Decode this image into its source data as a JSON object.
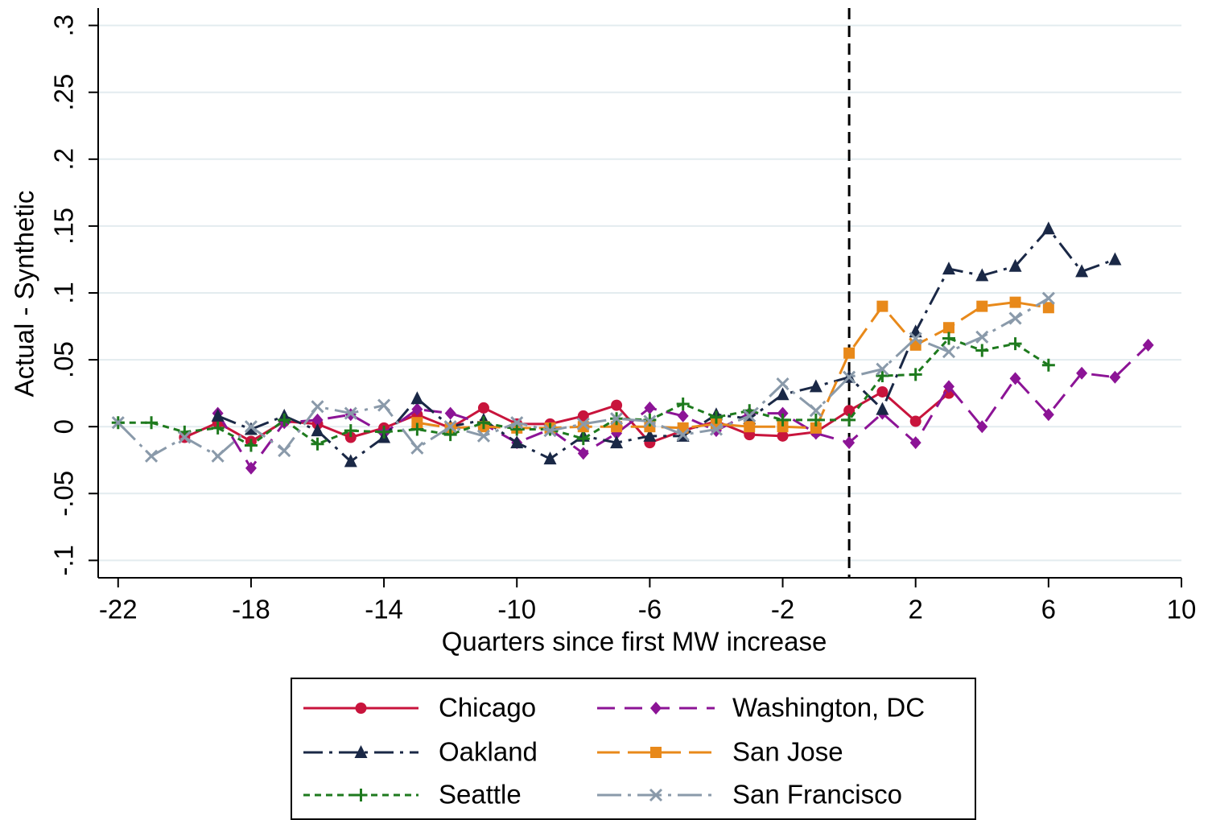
{
  "chart_data": {
    "type": "line",
    "x_label": "Quarters since first MW increase",
    "y_label": "Actual - Synthetic",
    "x": [
      -22,
      -21,
      -20,
      -19,
      -18,
      -17,
      -16,
      -15,
      -14,
      -13,
      -12,
      -11,
      -10,
      -9,
      -8,
      -7,
      -6,
      -5,
      -4,
      -3,
      -2,
      -1,
      0,
      1,
      2,
      3,
      4,
      5,
      6,
      7,
      8,
      9
    ],
    "xlim": [
      -22.6,
      10
    ],
    "xticks": [
      -22,
      -18,
      -14,
      -10,
      -6,
      -2,
      2,
      6,
      10
    ],
    "ylim": [
      -0.113,
      0.313
    ],
    "yticks": [
      {
        "value": -0.1,
        "label": "-.1"
      },
      {
        "value": -0.05,
        "label": "-.05"
      },
      0,
      {
        "value": 0.05,
        "label": ".05"
      },
      {
        "value": 0.1,
        "label": ".1"
      },
      {
        "value": 0.15,
        "label": ".15"
      },
      {
        "value": 0.2,
        "label": ".2"
      },
      {
        "value": 0.25,
        "label": ".25"
      },
      {
        "value": 0.3,
        "label": ".3"
      }
    ],
    "grid": true,
    "vline": 0,
    "series": [
      {
        "name": "Chicago",
        "color": "#c8143c",
        "dash": "solid",
        "marker": "circle",
        "values": [
          null,
          null,
          -0.008,
          0.003,
          -0.011,
          0.004,
          0.002,
          -0.008,
          -0.001,
          0.009,
          -0.001,
          0.014,
          0.002,
          0.002,
          0.008,
          0.016,
          -0.012,
          -0.003,
          0.004,
          -0.006,
          -0.007,
          -0.004,
          0.012,
          0.026,
          0.004,
          0.025,
          null,
          null,
          null,
          null,
          null,
          null
        ]
      },
      {
        "name": "Washington, DC",
        "color": "#8c1496",
        "dash": "dash",
        "marker": "diamond",
        "values": [
          null,
          null,
          null,
          0.01,
          -0.031,
          0.003,
          0.005,
          0.009,
          -0.005,
          0.013,
          0.01,
          0.002,
          -0.012,
          -0.002,
          -0.02,
          -0.005,
          0.014,
          0.008,
          -0.003,
          0.01,
          0.01,
          -0.005,
          -0.012,
          0.01,
          -0.012,
          0.03,
          0.0,
          0.036,
          0.009,
          0.04,
          0.037,
          0.061
        ]
      },
      {
        "name": "Oakland",
        "color": "#1a2846",
        "dash": "dashdot",
        "marker": "triangle",
        "values": [
          null,
          null,
          null,
          0.008,
          -0.002,
          0.008,
          -0.003,
          -0.026,
          -0.008,
          0.021,
          0.0,
          0.005,
          -0.012,
          -0.024,
          -0.007,
          -0.012,
          -0.007,
          -0.007,
          0.009,
          0.006,
          0.024,
          0.03,
          0.037,
          0.013,
          0.071,
          0.118,
          0.113,
          0.12,
          0.148,
          0.116,
          0.125,
          null
        ]
      },
      {
        "name": "San Jose",
        "color": "#e8891a",
        "dash": "longdash",
        "marker": "square",
        "values": [
          null,
          null,
          null,
          null,
          null,
          null,
          null,
          null,
          null,
          0.003,
          -0.001,
          0.0,
          -0.001,
          -0.001,
          0.0,
          0.0,
          0.0,
          -0.001,
          0.002,
          0.0,
          0.0,
          -0.001,
          0.055,
          0.09,
          0.061,
          0.074,
          0.09,
          0.093,
          0.089,
          null,
          null,
          null
        ]
      },
      {
        "name": "Seattle",
        "color": "#1e7a1e",
        "dash": "shortdash",
        "marker": "plus",
        "values": [
          0.003,
          0.003,
          -0.004,
          -0.001,
          -0.014,
          0.005,
          -0.013,
          -0.003,
          -0.004,
          -0.002,
          -0.006,
          0.003,
          -0.002,
          -0.002,
          -0.009,
          0.006,
          0.005,
          0.017,
          0.007,
          0.012,
          0.005,
          0.005,
          0.005,
          0.038,
          0.039,
          0.066,
          0.057,
          0.062,
          0.046,
          null,
          null,
          null
        ]
      },
      {
        "name": "San Francisco",
        "color": "#8a9aaa",
        "dash": "longdashdot",
        "marker": "x",
        "values": [
          0.003,
          -0.022,
          -0.008,
          -0.022,
          0.0,
          -0.018,
          0.015,
          0.01,
          0.016,
          -0.016,
          0.0,
          -0.007,
          0.003,
          -0.003,
          0.002,
          0.006,
          0.004,
          -0.006,
          -0.002,
          0.008,
          0.032,
          0.012,
          0.037,
          0.043,
          0.066,
          0.056,
          0.067,
          0.081,
          0.096,
          null,
          null,
          null
        ]
      }
    ]
  }
}
